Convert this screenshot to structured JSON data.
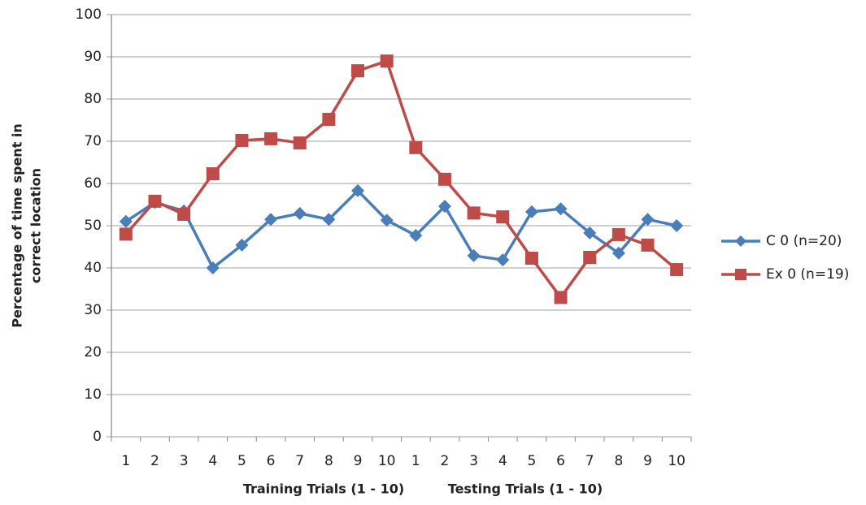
{
  "chart_data": {
    "type": "line",
    "ylabel": [
      "Percentage of time spent in",
      "correct location"
    ],
    "xlabels": [
      "Training Trials (1 - 10)",
      "Testing Trials (1 - 10)"
    ],
    "categories": [
      "1",
      "2",
      "3",
      "4",
      "5",
      "6",
      "7",
      "8",
      "9",
      "10",
      "1",
      "2",
      "3",
      "4",
      "5",
      "6",
      "7",
      "8",
      "9",
      "10"
    ],
    "series": [
      {
        "name": "C 0 (n=20)",
        "color": "#4a7ebb",
        "marker": "diamond",
        "values": [
          51,
          55.5,
          53.5,
          40,
          45.4,
          51.5,
          52.9,
          51.5,
          58.3,
          51.3,
          47.7,
          54.6,
          42.9,
          41.9,
          53.3,
          54,
          48.3,
          43.5,
          51.5,
          50
        ]
      },
      {
        "name": "Ex 0 (n=19)",
        "color": "#be4b48",
        "marker": "square",
        "values": [
          48,
          55.8,
          52.7,
          62.3,
          70.2,
          70.6,
          69.6,
          75.2,
          86.7,
          89,
          68.5,
          61,
          53,
          52.1,
          42.3,
          33,
          42.5,
          47.9,
          45.4,
          39.6
        ]
      }
    ],
    "ylim": [
      0,
      100
    ],
    "yticks": [
      0,
      10,
      20,
      30,
      40,
      50,
      60,
      70,
      80,
      90,
      100
    ],
    "grid": true,
    "legend": "right"
  }
}
